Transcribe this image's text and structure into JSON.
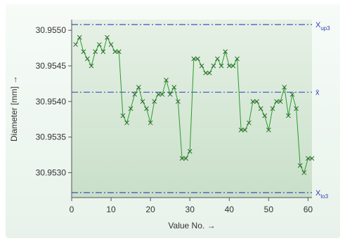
{
  "chart_data": {
    "type": "line",
    "xlabel": "Value No. →",
    "ylabel": "Diameter [mm] →",
    "xlim": [
      0,
      61
    ],
    "ylim": [
      30.95265,
      30.95515
    ],
    "xticks": [
      0,
      10,
      20,
      30,
      40,
      50,
      60
    ],
    "xtick_labels": [
      "0",
      "10",
      "20",
      "30",
      "40",
      "50",
      "60"
    ],
    "yticks": [
      30.953,
      30.9535,
      30.954,
      30.9545,
      30.955
    ],
    "ytick_labels": [
      "30.9530",
      "30.9535",
      "30.9540",
      "30.9545",
      "30.9550"
    ],
    "grid": false,
    "marker": "x",
    "colors": {
      "series": "#2e9b2e",
      "reference_lines": "#2f3fb8",
      "plot_bg_top": "#e6f1e6",
      "plot_bg_bottom": "#c9dfc9"
    },
    "reference_lines": [
      {
        "label": "X",
        "subscript": "up3",
        "value": 30.95508
      },
      {
        "label": "x̄",
        "subscript": "",
        "value": 30.95413
      },
      {
        "label": "X",
        "subscript": "lo3",
        "value": 30.95272
      }
    ],
    "series": [
      {
        "x": [
          1,
          2,
          3,
          4,
          5,
          6,
          7,
          8,
          9,
          10,
          11,
          12,
          13,
          14,
          15,
          16,
          17,
          18,
          19,
          20,
          21,
          22,
          23,
          24,
          25,
          26,
          27,
          28,
          29,
          30,
          31,
          32,
          33,
          34,
          35,
          36,
          37,
          38,
          39,
          40,
          41,
          42,
          43,
          44,
          45,
          46,
          47,
          48,
          49,
          50,
          51,
          52,
          53,
          54,
          55,
          56,
          57,
          58,
          59,
          60,
          61
        ],
        "values": [
          30.9548,
          30.9549,
          30.9547,
          30.9546,
          30.9545,
          30.9547,
          30.9548,
          30.9547,
          30.9549,
          30.9548,
          30.9547,
          30.9547,
          30.9538,
          30.9537,
          30.9539,
          30.9541,
          30.9542,
          30.954,
          30.9539,
          30.9537,
          30.954,
          30.9541,
          30.9541,
          30.9543,
          30.9541,
          30.9542,
          30.954,
          30.9532,
          30.9532,
          30.9533,
          30.9546,
          30.9546,
          30.9545,
          30.9544,
          30.9544,
          30.9545,
          30.9546,
          30.9545,
          30.9547,
          30.9545,
          30.9545,
          30.9546,
          30.9536,
          30.9536,
          30.9537,
          30.954,
          30.954,
          30.9539,
          30.9538,
          30.9536,
          30.9539,
          30.954,
          30.954,
          30.9542,
          30.9538,
          30.9541,
          30.9539,
          30.9531,
          30.953,
          30.9532,
          30.9532
        ]
      }
    ]
  }
}
